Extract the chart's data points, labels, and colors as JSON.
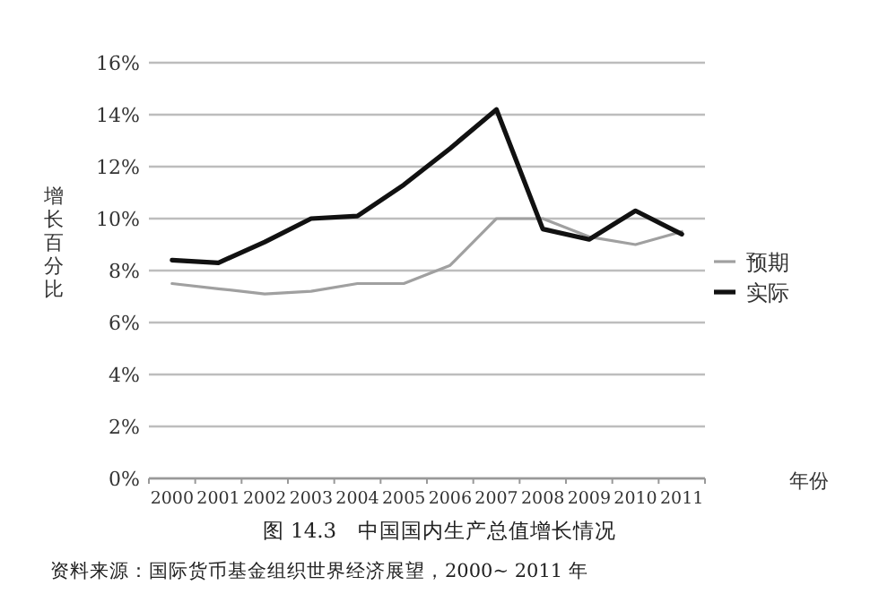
{
  "chart_data": {
    "type": "line",
    "title": "图 14.3　中国国内生产总值增长情况",
    "xlabel": "年份",
    "ylabel": "增长百分比",
    "annotations": [
      "资料来源：国际货币基金组织世界经济展望，2000~ 2011 年"
    ],
    "categories": [
      "2000",
      "2001",
      "2002",
      "2003",
      "2004",
      "2005",
      "2006",
      "2007",
      "2008",
      "2009",
      "2010",
      "2011"
    ],
    "series": [
      {
        "name": "预期",
        "color": "#a0a0a0",
        "values": [
          7.5,
          7.3,
          7.1,
          7.2,
          7.5,
          7.5,
          8.2,
          10.0,
          10.0,
          9.3,
          9.0,
          9.5
        ]
      },
      {
        "name": "实际",
        "color": "#111111",
        "values": [
          8.4,
          8.3,
          9.1,
          10.0,
          10.1,
          11.3,
          12.7,
          14.2,
          9.6,
          9.2,
          10.3,
          9.4
        ]
      }
    ],
    "ylim": [
      0,
      16
    ],
    "yticks": [
      {
        "value": 0,
        "label": "0%"
      },
      {
        "value": 2,
        "label": "2%"
      },
      {
        "value": 4,
        "label": "4%"
      },
      {
        "value": 6,
        "label": "6%"
      },
      {
        "value": 8,
        "label": "8%"
      },
      {
        "value": 10,
        "label": "10%"
      },
      {
        "value": 12,
        "label": "12%"
      },
      {
        "value": 14,
        "label": "14%"
      },
      {
        "value": 16,
        "label": "16%"
      }
    ],
    "grid": "y",
    "legend": "right",
    "marker": "none",
    "line_style": "solid"
  }
}
